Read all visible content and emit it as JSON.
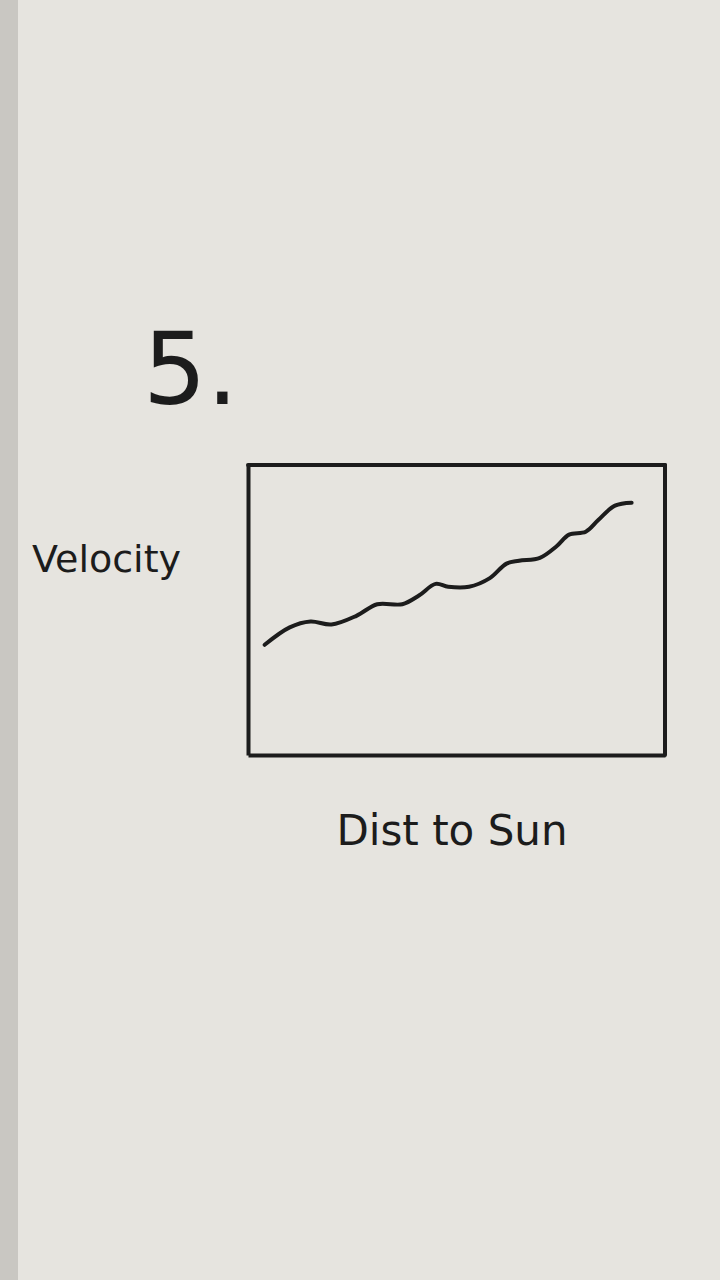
{
  "chart_data": {
    "type": "line",
    "title": "5.",
    "x_label": "Dist to Sun",
    "y_label": "Velocity",
    "x": [
      0.4,
      1.0,
      1.5,
      2.0,
      2.6,
      3.1,
      3.7,
      4.1,
      4.5,
      4.8,
      5.3,
      5.8,
      6.2,
      6.5,
      7.0,
      7.4,
      7.7,
      8.1,
      8.4,
      8.8,
      9.2
    ],
    "values": [
      3.8,
      4.4,
      4.6,
      4.5,
      4.8,
      5.2,
      5.2,
      5.5,
      5.9,
      5.8,
      5.8,
      6.1,
      6.6,
      6.7,
      6.8,
      7.2,
      7.6,
      7.7,
      8.1,
      8.6,
      8.7
    ],
    "color": "#1c1c1c",
    "xlim": [
      0,
      10
    ],
    "ylim": [
      0,
      10
    ],
    "grid": false,
    "tick_labels": false
  }
}
